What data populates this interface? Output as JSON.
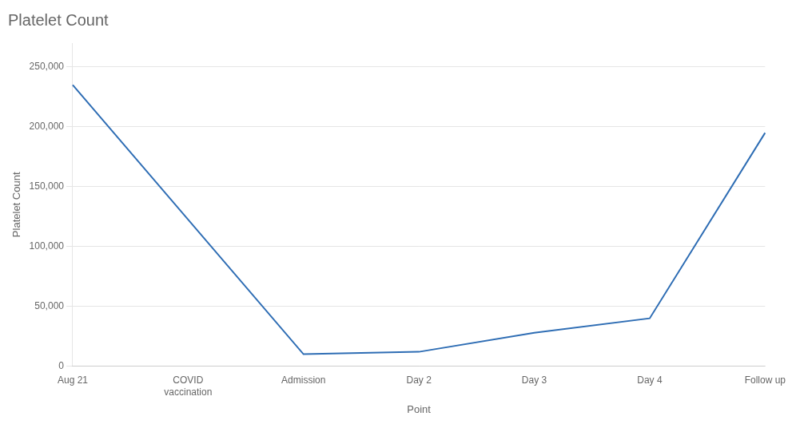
{
  "chart_data": {
    "type": "line",
    "title": "Platelet Count",
    "x_label": "Point",
    "y_label": "Platelet Count",
    "categories": [
      "Aug 21",
      "COVID\nvaccination",
      "Admission",
      "Day 2",
      "Day 3",
      "Day 4",
      "Follow up"
    ],
    "values": [
      235000,
      null,
      10000,
      12000,
      28000,
      40000,
      195000
    ],
    "color": "#2E6DB4",
    "ylim": [
      0,
      270000
    ],
    "yticks": [
      0,
      {
        "value": 50000,
        "label": "50,000"
      },
      {
        "value": 100000,
        "label": "100,000"
      },
      {
        "value": 150000,
        "label": "150,000"
      },
      {
        "value": 200000,
        "label": "200,000"
      },
      {
        "value": 250000,
        "label": "250,000"
      }
    ],
    "grid": true
  }
}
